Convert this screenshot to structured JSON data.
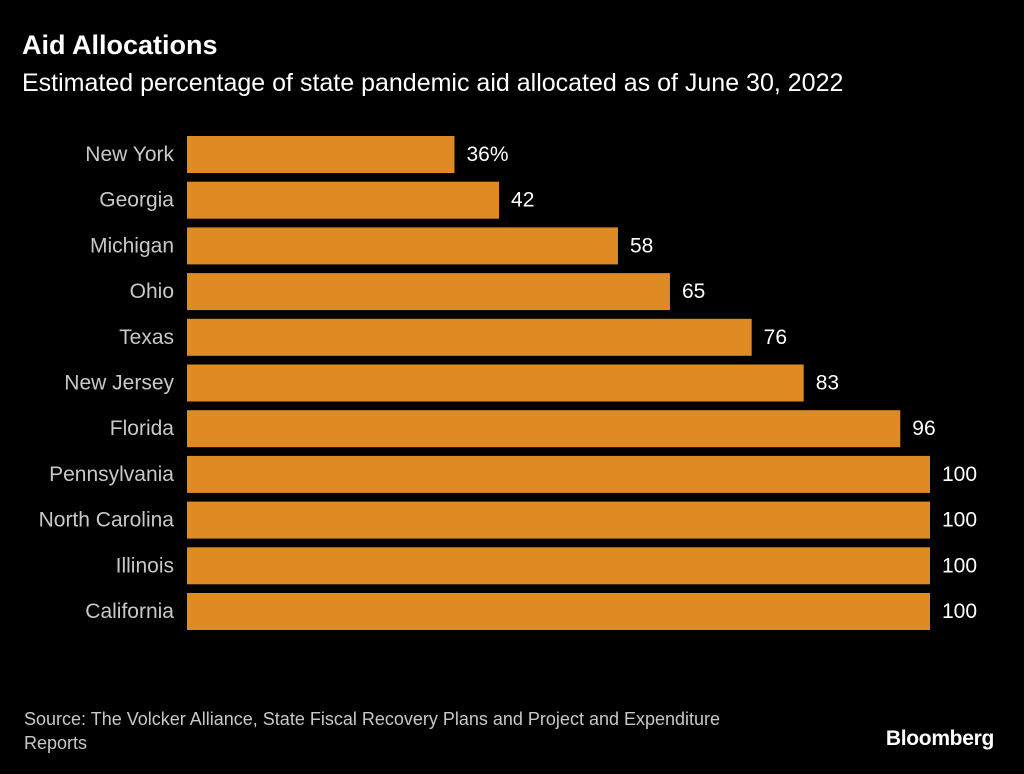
{
  "header": {
    "title": "Aid Allocations",
    "subtitle": "Estimated percentage of state pandemic aid allocated as of June 30, 2022"
  },
  "chart_data": {
    "type": "bar",
    "orientation": "horizontal",
    "title": "Aid Allocations",
    "subtitle": "Estimated percentage of state pandemic aid allocated as of June 30, 2022",
    "categories": [
      "New York",
      "Georgia",
      "Michigan",
      "Ohio",
      "Texas",
      "New Jersey",
      "Florida",
      "Pennsylvania",
      "North Carolina",
      "Illinois",
      "California"
    ],
    "values": [
      36,
      42,
      58,
      65,
      76,
      83,
      96,
      100,
      100,
      100,
      100
    ],
    "value_labels": [
      "36%",
      "42",
      "58",
      "65",
      "76",
      "83",
      "96",
      "100",
      "100",
      "100",
      "100"
    ],
    "xlim": [
      0,
      100
    ],
    "xlabel": "",
    "ylabel": "",
    "grid": false,
    "bar_color": "#e08a23"
  },
  "footer": {
    "source": "Source: The Volcker Alliance, State Fiscal Recovery Plans and Project and Expenditure Reports",
    "brand": "Bloomberg"
  },
  "colors": {
    "background": "#000000",
    "bar": "#e08a23",
    "text": "#ffffff",
    "muted_text": "#c8c8c8"
  }
}
